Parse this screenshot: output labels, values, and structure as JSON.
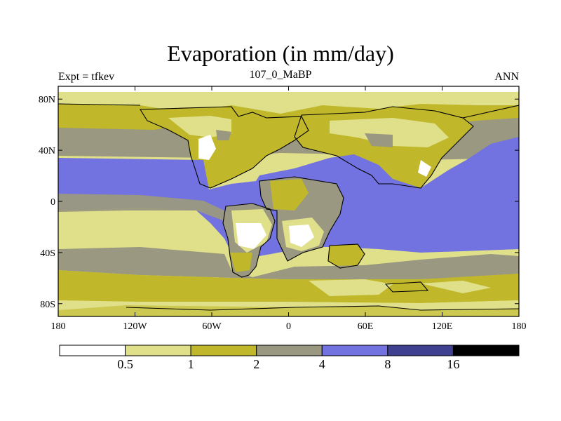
{
  "title": "Evaporation (in mm/day)",
  "left_string": "Expt = tfkev",
  "center_string": "107_0_MaBP",
  "right_string": "ANN",
  "map": {
    "lon_ticks": [
      "180",
      "120W",
      "60W",
      "0",
      "60E",
      "120E",
      "180"
    ],
    "lat_ticks": [
      "80N",
      "40N",
      "0",
      "40S",
      "80S"
    ]
  },
  "colorbar": {
    "levels": [
      "0.5",
      "1",
      "2",
      "4",
      "8",
      "16"
    ],
    "colors": [
      "#ffffff",
      "#e0e08a",
      "#c0b82a",
      "#9a9880",
      "#7272e0",
      "#404090",
      "#000000"
    ]
  }
}
